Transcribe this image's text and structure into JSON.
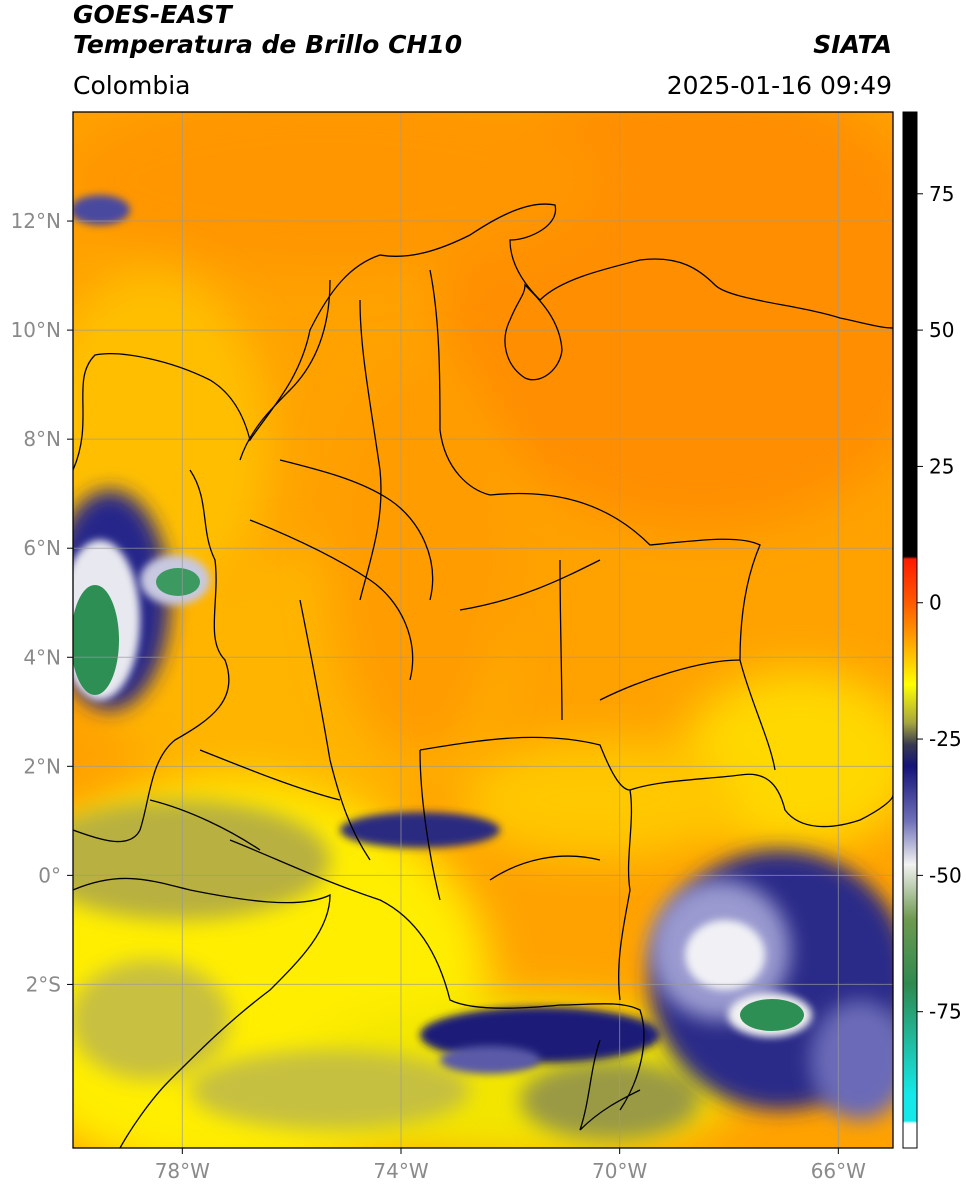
{
  "header": {
    "satellite": "GOES-EAST",
    "product": "Temperatura de Brillo CH10",
    "brand": "SIATA",
    "region": "Colombia",
    "timestamp": "2025-01-16 09:49"
  },
  "map": {
    "lon_range": [
      -80,
      -65
    ],
    "lat_range": [
      -5,
      14
    ],
    "lon_ticks": [
      {
        "value": -78,
        "label": "78°W"
      },
      {
        "value": -74,
        "label": "74°W"
      },
      {
        "value": -70,
        "label": "70°W"
      },
      {
        "value": -66,
        "label": "66°W"
      }
    ],
    "lat_ticks": [
      {
        "value": 12,
        "label": "12°N"
      },
      {
        "value": 10,
        "label": "10°N"
      },
      {
        "value": 8,
        "label": "8°N"
      },
      {
        "value": 6,
        "label": "6°N"
      },
      {
        "value": 4,
        "label": "4°N"
      },
      {
        "value": 2,
        "label": "2°N"
      },
      {
        "value": 0,
        "label": "0°"
      },
      {
        "value": -2,
        "label": "2°S"
      }
    ],
    "grid": true
  },
  "colorbar": {
    "range": [
      -100,
      90
    ],
    "ticks": [
      {
        "value": 75,
        "label": "75"
      },
      {
        "value": 50,
        "label": "50"
      },
      {
        "value": 25,
        "label": "25"
      },
      {
        "value": 0,
        "label": "0"
      },
      {
        "value": -25,
        "label": "-25"
      },
      {
        "value": -50,
        "label": "-50"
      },
      {
        "value": -75,
        "label": "-75"
      }
    ],
    "stops": [
      {
        "value": 90,
        "color": "#000000"
      },
      {
        "value": 8.5,
        "color": "#000000"
      },
      {
        "value": 8,
        "color": "#ff1a00"
      },
      {
        "value": 0,
        "color": "#ff5a00"
      },
      {
        "value": -6,
        "color": "#ff9a00"
      },
      {
        "value": -11,
        "color": "#ffd000"
      },
      {
        "value": -15,
        "color": "#ffff00"
      },
      {
        "value": -22,
        "color": "#a6a640"
      },
      {
        "value": -26,
        "color": "#3a3a50"
      },
      {
        "value": -30,
        "color": "#14147a"
      },
      {
        "value": -40,
        "color": "#6e70b8"
      },
      {
        "value": -48,
        "color": "#f2f2f2"
      },
      {
        "value": -58,
        "color": "#6e9a50"
      },
      {
        "value": -70,
        "color": "#2e8a50"
      },
      {
        "value": -90,
        "color": "#14e8e8"
      },
      {
        "value": -95,
        "color": "#14e8e8"
      },
      {
        "value": -95.5,
        "color": "#ffffff"
      },
      {
        "value": -100,
        "color": "#ffffff"
      }
    ]
  },
  "colors": {
    "warm_base": "#ffa500",
    "deep_warm": "#ff8c00",
    "cool": "#ffe800",
    "cold_yellow": "#ffff00",
    "olive": "#a8a838",
    "navy": "#141478",
    "white_cloud": "#f0f0f5",
    "green_core": "#2e8f55"
  }
}
